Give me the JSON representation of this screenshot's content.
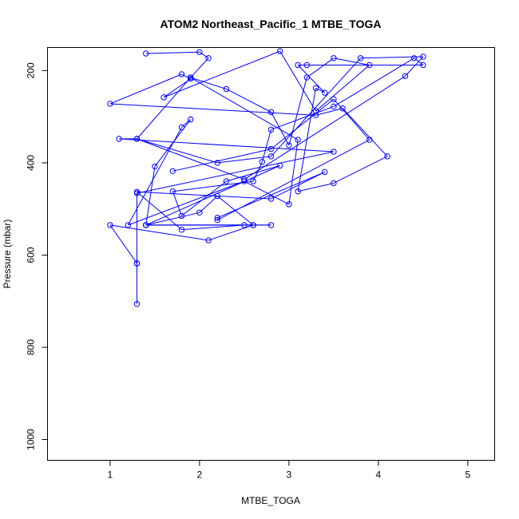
{
  "chart_data": {
    "type": "line",
    "title": "ATOM2 Northeast_Pacific_1 MTBE_TOGA",
    "xlabel": "MTBE_TOGA",
    "ylabel": "Pressure (mbar)",
    "xlim": [
      0.3,
      5.3
    ],
    "ylim": [
      1045,
      150
    ],
    "y_reversed": true,
    "xticks": [
      1,
      2,
      3,
      4,
      5
    ],
    "yticks": [
      200,
      400,
      600,
      800,
      1000
    ],
    "grid": false,
    "legend": "none",
    "color": "#0000ff",
    "markers": "open-circle",
    "series": [
      {
        "points": [
          [
            1.4,
            163
          ],
          [
            2.0,
            160
          ],
          [
            2.1,
            173
          ],
          [
            1.9,
            215
          ],
          [
            2.3,
            240
          ],
          [
            2.8,
            290
          ],
          [
            3.0,
            362
          ],
          [
            3.2,
            215
          ],
          [
            3.5,
            173
          ],
          [
            3.9,
            188
          ],
          [
            3.3,
            288
          ],
          [
            2.9,
            158
          ],
          [
            1.6,
            258
          ],
          [
            1.9,
            218
          ],
          [
            1.8,
            208
          ],
          [
            1.0,
            272
          ],
          [
            3.3,
            297
          ],
          [
            3.6,
            282
          ],
          [
            4.1,
            386
          ],
          [
            3.5,
            444
          ],
          [
            3.1,
            462
          ],
          [
            3.3,
            238
          ],
          [
            3.4,
            248
          ],
          [
            3.1,
            188
          ],
          [
            3.2,
            188
          ],
          [
            4.5,
            188
          ],
          [
            4.4,
            173
          ],
          [
            3.5,
            278
          ],
          [
            2.8,
            328
          ],
          [
            2.7,
            398
          ],
          [
            2.6,
            440
          ],
          [
            1.7,
            462
          ],
          [
            1.8,
            515
          ],
          [
            2.3,
            440
          ],
          [
            2.9,
            406
          ],
          [
            1.4,
            535
          ],
          [
            2.0,
            508
          ],
          [
            2.2,
            472
          ],
          [
            2.6,
            535
          ],
          [
            2.1,
            568
          ],
          [
            1.0,
            535
          ],
          [
            1.3,
            618
          ],
          [
            1.3,
            706
          ],
          [
            1.3,
            618
          ],
          [
            1.3,
            466
          ],
          [
            3.5,
            376
          ],
          [
            1.1,
            348
          ],
          [
            1.3,
            348
          ],
          [
            2.2,
            400
          ],
          [
            2.8,
            386
          ],
          [
            3.8,
            173
          ],
          [
            4.5,
            170
          ],
          [
            4.3,
            212
          ],
          [
            2.5,
            436
          ],
          [
            1.3,
            348
          ],
          [
            1.9,
            215
          ],
          [
            3.1,
            350
          ],
          [
            3.0,
            490
          ],
          [
            2.5,
            440
          ],
          [
            1.2,
            535
          ],
          [
            1.8,
            323
          ],
          [
            1.9,
            306
          ],
          [
            1.5,
            408
          ],
          [
            1.4,
            535
          ],
          [
            2.8,
            535
          ],
          [
            1.4,
            535
          ],
          [
            2.6,
            535
          ],
          [
            2.5,
            535
          ],
          [
            1.8,
            545
          ],
          [
            1.3,
            463
          ],
          [
            2.8,
            478
          ],
          [
            3.4,
            420
          ],
          [
            2.2,
            519
          ],
          [
            2.2,
            524
          ],
          [
            3.9,
            350
          ],
          [
            3.5,
            262
          ],
          [
            2.8,
            370
          ],
          [
            1.7,
            418
          ]
        ]
      }
    ]
  }
}
